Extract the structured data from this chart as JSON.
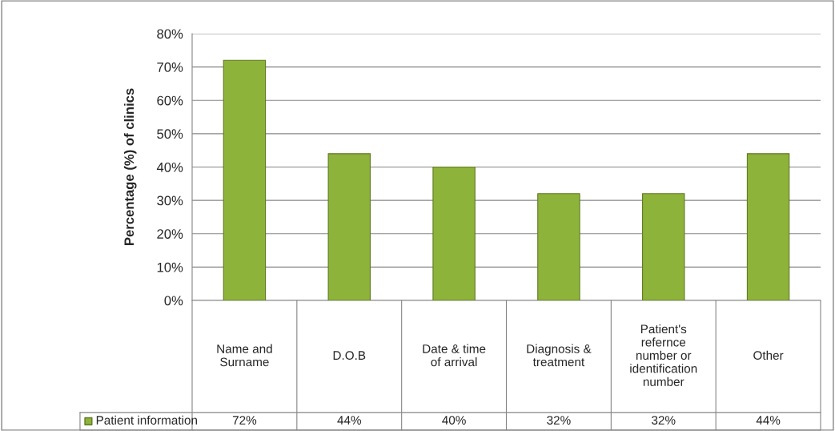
{
  "chart_data": {
    "type": "bar",
    "ylabel": "Percentage (%) of clinics",
    "categories": [
      "Name and\nSurname",
      "D.O.B",
      "Date & time\nof arrival",
      "Diagnosis &\ntreatment",
      "Patient's\nrefernce\nnumber or\nidentification\nnumber",
      "Other"
    ],
    "series": [
      {
        "name": "Patient information",
        "color": "#8db33a",
        "values": [
          72,
          44,
          40,
          32,
          32,
          44
        ],
        "value_labels": [
          "72%",
          "44%",
          "40%",
          "32%",
          "32%",
          "44%"
        ]
      }
    ],
    "ylim": [
      0,
      80
    ],
    "yticks": [
      {
        "value": 0,
        "label": "0%"
      },
      {
        "value": 10,
        "label": "10%"
      },
      {
        "value": 20,
        "label": "20%"
      },
      {
        "value": 30,
        "label": "30%"
      },
      {
        "value": 40,
        "label": "40%"
      },
      {
        "value": 50,
        "label": "50%"
      },
      {
        "value": 60,
        "label": "60%"
      },
      {
        "value": 70,
        "label": "70%"
      },
      {
        "value": 80,
        "label": "80%"
      }
    ],
    "grid": "y",
    "legend": "bottom left"
  }
}
